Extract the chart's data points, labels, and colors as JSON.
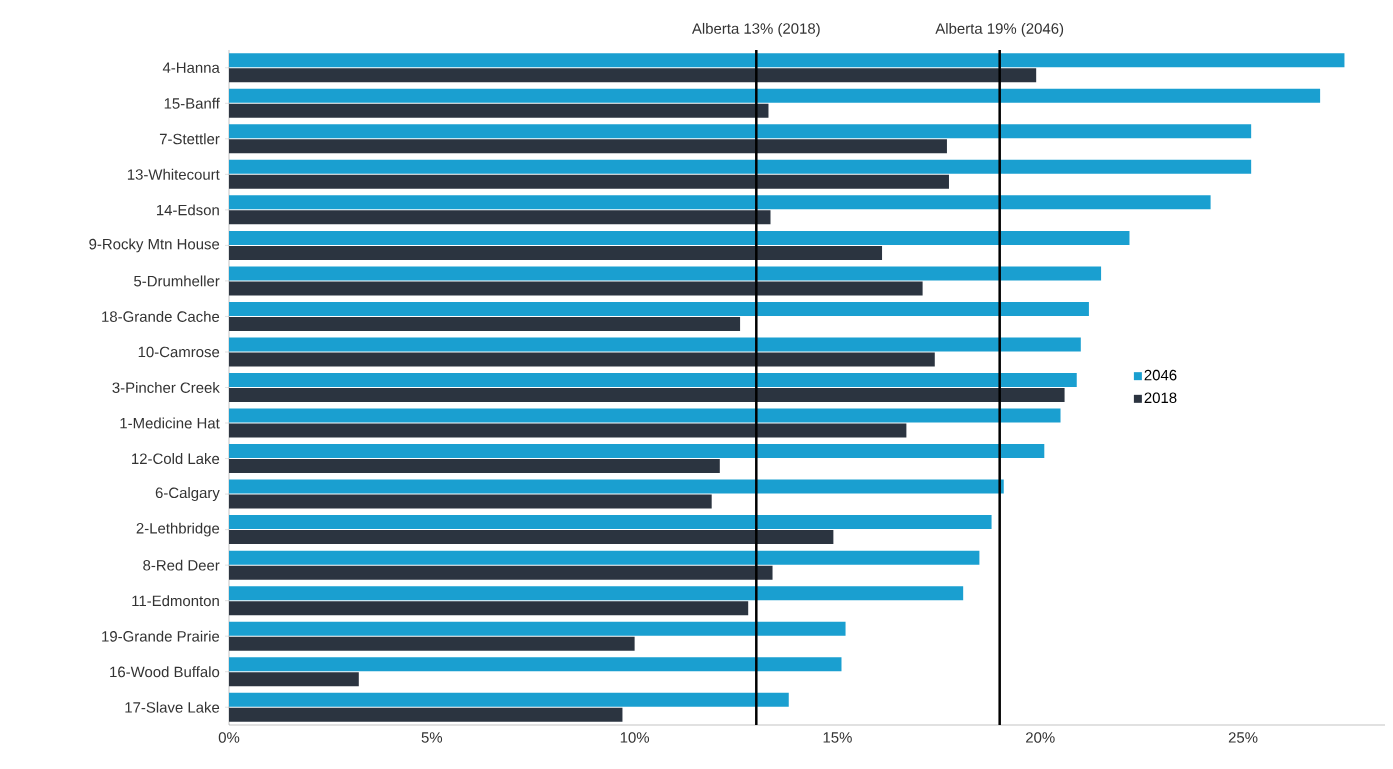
{
  "chart_data": {
    "type": "bar",
    "orientation": "horizontal",
    "categories": [
      "4-Hanna",
      "15-Banff",
      "7-Stettler",
      "13-Whitecourt",
      "14-Edson",
      "9-Rocky Mtn House",
      "5-Drumheller",
      "18-Grande Cache",
      "10-Camrose",
      "3-Pincher Creek",
      "1-Medicine Hat",
      "12-Cold Lake",
      "6-Calgary",
      "2-Lethbridge",
      "8-Red Deer",
      "11-Edmonton",
      "19-Grande Prairie",
      "16-Wood Buffalo",
      "17-Slave Lake"
    ],
    "series": [
      {
        "name": "2046",
        "color": "#1a9fd0",
        "values": [
          27.5,
          26.9,
          25.2,
          25.2,
          24.2,
          22.2,
          21.5,
          21.2,
          21.0,
          20.9,
          20.5,
          20.1,
          19.1,
          18.8,
          18.5,
          18.1,
          15.2,
          15.1,
          13.8
        ]
      },
      {
        "name": "2018",
        "color": "#2b3440",
        "values": [
          19.9,
          13.3,
          17.7,
          17.75,
          13.35,
          16.1,
          17.1,
          12.6,
          17.4,
          20.6,
          16.7,
          12.1,
          11.9,
          14.9,
          13.4,
          12.8,
          10.0,
          3.2,
          9.7
        ]
      }
    ],
    "xlim": [
      0,
      28.5
    ],
    "xticks": [
      {
        "value": 0,
        "label": "0%"
      },
      {
        "value": 5,
        "label": "5%"
      },
      {
        "value": 10,
        "label": "10%"
      },
      {
        "value": 15,
        "label": "15%"
      },
      {
        "value": 20,
        "label": "20%"
      },
      {
        "value": 25,
        "label": "25%"
      }
    ],
    "ref_lines": [
      {
        "axis": "x",
        "value": 13,
        "label": "Alberta 13% (2018)",
        "color": "#000000"
      },
      {
        "axis": "x",
        "value": 19,
        "label": "Alberta 19% (2046)",
        "color": "#000000"
      }
    ],
    "legend": "right"
  }
}
